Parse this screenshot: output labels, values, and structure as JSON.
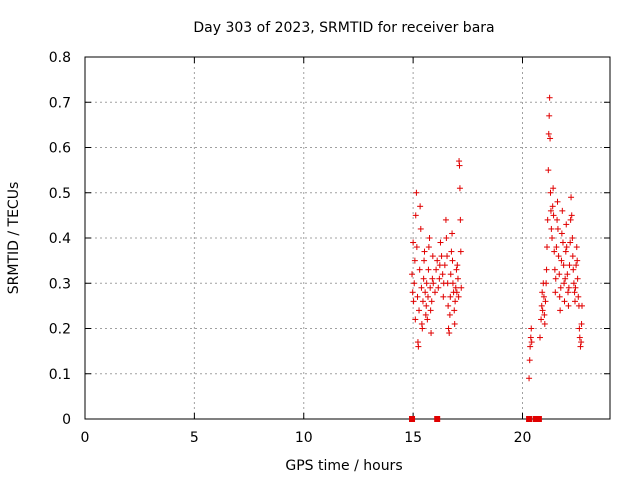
{
  "chart_data": {
    "type": "scatter",
    "title": "Day 303 of 2023, SRMTID for receiver bara",
    "xlabel": "GPS time / hours",
    "ylabel": "SRMTID / TECUs",
    "xlim": [
      0,
      24
    ],
    "ylim": [
      0,
      0.8
    ],
    "xticks": [
      0,
      5,
      10,
      15,
      20
    ],
    "xtick_labels": [
      "0",
      "5",
      "10",
      "15",
      "20"
    ],
    "yticks": [
      0,
      0.1,
      0.2,
      0.3,
      0.4,
      0.5,
      0.6,
      0.7,
      0.8
    ],
    "ytick_labels": [
      "0",
      "0.1",
      "0.2",
      "0.3",
      "0.4",
      "0.5",
      "0.6",
      "0.7",
      "0.8"
    ],
    "grid": true,
    "marker": "+",
    "color": "#e00000",
    "series": [
      {
        "name": "SRMTID",
        "points": [
          [
            14.95,
            0.32
          ],
          [
            14.98,
            0.28
          ],
          [
            15.0,
            0.39
          ],
          [
            15.02,
            0.26
          ],
          [
            15.05,
            0.3
          ],
          [
            15.08,
            0.35
          ],
          [
            15.1,
            0.22
          ],
          [
            15.12,
            0.45
          ],
          [
            15.15,
            0.5
          ],
          [
            15.17,
            0.38
          ],
          [
            15.2,
            0.27
          ],
          [
            15.22,
            0.17
          ],
          [
            15.24,
            0.16
          ],
          [
            15.27,
            0.24
          ],
          [
            15.3,
            0.33
          ],
          [
            15.32,
            0.47
          ],
          [
            15.35,
            0.42
          ],
          [
            15.38,
            0.29
          ],
          [
            15.4,
            0.21
          ],
          [
            15.42,
            0.2
          ],
          [
            15.45,
            0.26
          ],
          [
            15.48,
            0.31
          ],
          [
            15.5,
            0.35
          ],
          [
            15.52,
            0.37
          ],
          [
            15.55,
            0.28
          ],
          [
            15.58,
            0.23
          ],
          [
            15.6,
            0.25
          ],
          [
            15.62,
            0.3
          ],
          [
            15.65,
            0.22
          ],
          [
            15.68,
            0.27
          ],
          [
            15.7,
            0.33
          ],
          [
            15.72,
            0.38
          ],
          [
            15.75,
            0.4
          ],
          [
            15.78,
            0.29
          ],
          [
            15.8,
            0.24
          ],
          [
            15.82,
            0.19
          ],
          [
            15.85,
            0.26
          ],
          [
            15.88,
            0.31
          ],
          [
            15.9,
            0.36
          ],
          [
            15.92,
            0.3
          ],
          [
            16.0,
            0.28
          ],
          [
            16.05,
            0.33
          ],
          [
            16.1,
            0.35
          ],
          [
            16.15,
            0.29
          ],
          [
            16.2,
            0.31
          ],
          [
            16.22,
            0.34
          ],
          [
            16.25,
            0.39
          ],
          [
            16.3,
            0.36
          ],
          [
            16.35,
            0.32
          ],
          [
            16.38,
            0.27
          ],
          [
            16.4,
            0.3
          ],
          [
            16.45,
            0.34
          ],
          [
            16.5,
            0.44
          ],
          [
            16.52,
            0.4
          ],
          [
            16.55,
            0.36
          ],
          [
            16.58,
            0.3
          ],
          [
            16.6,
            0.25
          ],
          [
            16.62,
            0.2
          ],
          [
            16.65,
            0.19
          ],
          [
            16.68,
            0.23
          ],
          [
            16.7,
            0.27
          ],
          [
            16.72,
            0.32
          ],
          [
            16.75,
            0.37
          ],
          [
            16.78,
            0.41
          ],
          [
            16.8,
            0.35
          ],
          [
            16.82,
            0.3
          ],
          [
            16.85,
            0.28
          ],
          [
            16.88,
            0.24
          ],
          [
            16.9,
            0.21
          ],
          [
            16.92,
            0.26
          ],
          [
            16.95,
            0.29
          ],
          [
            16.98,
            0.33
          ],
          [
            17.0,
            0.28
          ],
          [
            17.02,
            0.34
          ],
          [
            17.05,
            0.31
          ],
          [
            17.08,
            0.27
          ],
          [
            17.1,
            0.57
          ],
          [
            17.12,
            0.56
          ],
          [
            17.14,
            0.51
          ],
          [
            17.16,
            0.44
          ],
          [
            17.18,
            0.37
          ],
          [
            17.2,
            0.29
          ],
          [
            20.3,
            0.09
          ],
          [
            20.33,
            0.13
          ],
          [
            20.35,
            0.16
          ],
          [
            20.38,
            0.18
          ],
          [
            20.4,
            0.2
          ],
          [
            20.42,
            0.17
          ],
          [
            20.8,
            0.18
          ],
          [
            20.85,
            0.22
          ],
          [
            20.88,
            0.25
          ],
          [
            20.9,
            0.28
          ],
          [
            20.92,
            0.24
          ],
          [
            20.95,
            0.3
          ],
          [
            20.98,
            0.27
          ],
          [
            21.0,
            0.23
          ],
          [
            21.02,
            0.21
          ],
          [
            21.05,
            0.26
          ],
          [
            21.08,
            0.3
          ],
          [
            21.1,
            0.33
          ],
          [
            21.12,
            0.38
          ],
          [
            21.15,
            0.44
          ],
          [
            21.18,
            0.55
          ],
          [
            21.2,
            0.63
          ],
          [
            21.22,
            0.67
          ],
          [
            21.24,
            0.71
          ],
          [
            21.26,
            0.62
          ],
          [
            21.28,
            0.5
          ],
          [
            21.3,
            0.46
          ],
          [
            21.32,
            0.42
          ],
          [
            21.35,
            0.4
          ],
          [
            21.38,
            0.47
          ],
          [
            21.4,
            0.51
          ],
          [
            21.42,
            0.45
          ],
          [
            21.45,
            0.37
          ],
          [
            21.48,
            0.33
          ],
          [
            21.5,
            0.28
          ],
          [
            21.52,
            0.31
          ],
          [
            21.55,
            0.38
          ],
          [
            21.58,
            0.44
          ],
          [
            21.6,
            0.48
          ],
          [
            21.62,
            0.42
          ],
          [
            21.65,
            0.36
          ],
          [
            21.68,
            0.32
          ],
          [
            21.7,
            0.27
          ],
          [
            21.72,
            0.24
          ],
          [
            21.75,
            0.29
          ],
          [
            21.78,
            0.35
          ],
          [
            21.8,
            0.41
          ],
          [
            21.82,
            0.46
          ],
          [
            21.85,
            0.39
          ],
          [
            21.88,
            0.34
          ],
          [
            21.9,
            0.3
          ],
          [
            21.92,
            0.26
          ],
          [
            21.95,
            0.31
          ],
          [
            21.98,
            0.37
          ],
          [
            22.0,
            0.43
          ],
          [
            22.02,
            0.38
          ],
          [
            22.05,
            0.32
          ],
          [
            22.08,
            0.28
          ],
          [
            22.1,
            0.25
          ],
          [
            22.12,
            0.29
          ],
          [
            22.15,
            0.34
          ],
          [
            22.18,
            0.39
          ],
          [
            22.2,
            0.44
          ],
          [
            22.22,
            0.49
          ],
          [
            22.25,
            0.45
          ],
          [
            22.28,
            0.4
          ],
          [
            22.3,
            0.36
          ],
          [
            22.32,
            0.33
          ],
          [
            22.35,
            0.3
          ],
          [
            22.38,
            0.28
          ],
          [
            22.4,
            0.26
          ],
          [
            22.42,
            0.29
          ],
          [
            22.45,
            0.34
          ],
          [
            22.48,
            0.38
          ],
          [
            22.5,
            0.35
          ],
          [
            22.52,
            0.31
          ],
          [
            22.55,
            0.27
          ],
          [
            22.58,
            0.25
          ],
          [
            22.6,
            0.2
          ],
          [
            22.62,
            0.18
          ],
          [
            22.65,
            0.16
          ],
          [
            22.68,
            0.17
          ],
          [
            22.7,
            0.21
          ],
          [
            22.72,
            0.25
          ]
        ]
      },
      {
        "name": "zero-markers",
        "marker": "square",
        "points": [
          [
            14.95,
            0
          ],
          [
            16.1,
            0
          ],
          [
            20.3,
            0
          ],
          [
            20.6,
            0
          ],
          [
            20.75,
            0
          ]
        ]
      }
    ]
  }
}
